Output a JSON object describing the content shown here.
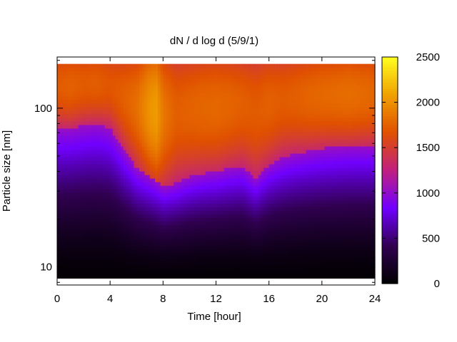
{
  "chart_data": {
    "type": "heatmap",
    "title": "dN / d log d (5/9/1)",
    "xlabel": "Time [hour]",
    "ylabel": "Particle size [nm]",
    "x_ticks": [
      "0",
      "4",
      "8",
      "12",
      "16",
      "20",
      "24"
    ],
    "y_ticks": [
      "10",
      "100"
    ],
    "colorbar_ticks": [
      "0",
      "500",
      "1000",
      "1500",
      "2000",
      "2500"
    ],
    "xlim": [
      0,
      24
    ],
    "ylim": [
      7.7,
      210
    ],
    "y_scale": "log",
    "y_data_range": [
      8.5,
      190
    ],
    "clim": [
      0,
      2500
    ],
    "colormap": "black-purple-red-orange-yellow",
    "colormap_stops": [
      "#000000",
      "#300050",
      "#7000ff",
      "#c02080",
      "#e05000",
      "#f0a000",
      "#ffff20"
    ],
    "grid": false,
    "profile": {
      "hours": [
        0,
        1,
        2,
        3,
        4,
        5,
        6,
        7,
        7.5,
        8,
        9,
        10,
        11,
        12,
        13,
        14,
        15,
        16,
        17,
        18,
        19,
        20,
        21,
        22,
        23,
        24
      ],
      "peak_value": [
        1720,
        1750,
        1720,
        1730,
        1690,
        1740,
        1820,
        2020,
        2060,
        1870,
        1740,
        1760,
        1780,
        1790,
        1770,
        1740,
        1720,
        1750,
        1720,
        1740,
        1770,
        1790,
        1800,
        1820,
        1800,
        1780
      ],
      "lower_edge_nm": [
        75,
        75,
        78,
        80,
        75,
        55,
        42,
        37,
        35,
        32,
        34,
        37,
        39,
        40,
        42,
        43,
        36,
        44,
        49,
        52,
        54,
        56,
        57,
        58,
        58,
        58
      ]
    }
  }
}
